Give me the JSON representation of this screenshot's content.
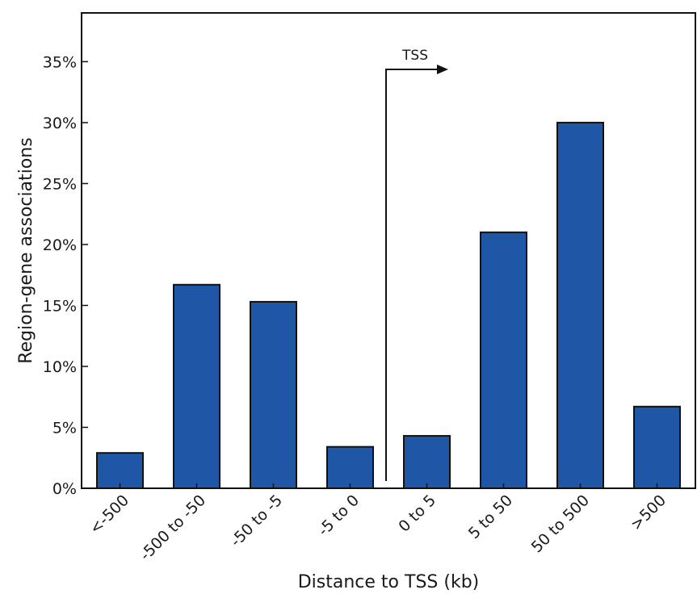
{
  "chart_data": {
    "type": "bar",
    "categories": [
      "<-500",
      "-500 to -50",
      "-50 to -5",
      "-5 to 0",
      "0 to 5",
      "5 to 50",
      "50 to 500",
      ">500"
    ],
    "values": [
      2.9,
      16.7,
      15.3,
      3.4,
      4.3,
      21.0,
      30.0,
      6.7
    ],
    "title": "",
    "xlabel": "Distance to TSS (kb)",
    "ylabel": "Region-gene associations",
    "ylim": [
      0,
      39
    ],
    "yticks": [
      0,
      5,
      10,
      15,
      20,
      25,
      30,
      35
    ],
    "ytick_labels": [
      "0%",
      "5%",
      "10%",
      "15%",
      "20%",
      "25%",
      "30%",
      "35%"
    ],
    "grid": false,
    "bar_color": "#1f56a6",
    "bar_edge_color": "#111111",
    "annotation": {
      "label": "TSS"
    }
  }
}
